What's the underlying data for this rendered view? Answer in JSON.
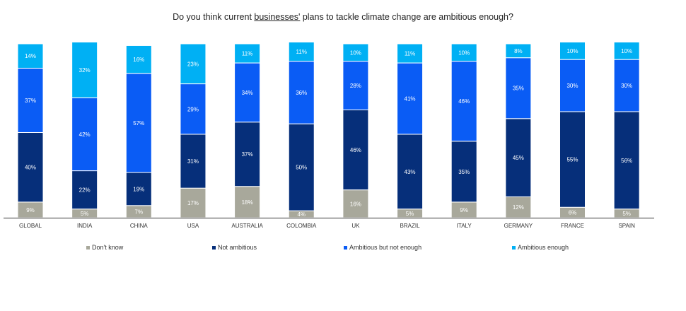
{
  "chart_data": {
    "type": "bar",
    "stacked": true,
    "title_parts": {
      "before": "Do you think current ",
      "underlined": "businesses'",
      "after": " plans to tackle climate change are ambitious enough?"
    },
    "categories": [
      "GLOBAL",
      "INDIA",
      "CHINA",
      "USA",
      "AUSTRALIA",
      "COLOMBIA",
      "UK",
      "BRAZIL",
      "ITALY",
      "GERMANY",
      "FRANCE",
      "SPAIN"
    ],
    "series": [
      {
        "name": "Don't know",
        "color": "#a8a89b",
        "values": [
          9,
          5,
          7,
          17,
          18,
          4,
          16,
          5,
          9,
          12,
          6,
          5
        ]
      },
      {
        "name": "Not ambitious",
        "color": "#062f7a",
        "values": [
          40,
          22,
          19,
          31,
          37,
          50,
          46,
          43,
          35,
          45,
          55,
          56
        ]
      },
      {
        "name": "Ambitious but not enough",
        "color": "#0a5cf5",
        "values": [
          37,
          42,
          57,
          29,
          34,
          36,
          28,
          41,
          46,
          35,
          30,
          30
        ]
      },
      {
        "name": "Ambitious enough",
        "color": "#00b0f4",
        "values": [
          14,
          32,
          16,
          23,
          11,
          11,
          10,
          11,
          10,
          8,
          10,
          10
        ]
      }
    ],
    "value_format": "{v}%",
    "ylim": [
      0,
      100
    ],
    "grid": false,
    "legend_position": "bottom",
    "xlabel": "",
    "ylabel": ""
  }
}
